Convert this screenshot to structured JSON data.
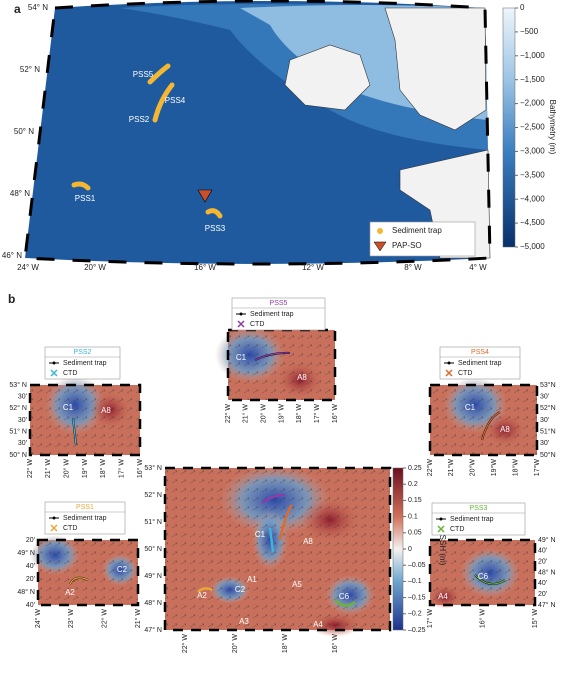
{
  "panel_a": {
    "label": "a",
    "colorbar_label": "Bathymetry (m)",
    "colorbar_ticks": [
      0,
      {
        "value": -500,
        "label": "−500"
      },
      {
        "value": -1000,
        "label": "−1,000"
      },
      {
        "value": -1500,
        "label": "−1,500"
      },
      {
        "value": -2000,
        "label": "−2,000"
      },
      {
        "value": -2500,
        "label": "−2,500"
      },
      {
        "value": -3000,
        "label": "−3,000"
      },
      {
        "value": -3500,
        "label": "−3,500"
      },
      {
        "value": -4000,
        "label": "−4,000"
      },
      {
        "value": -4500,
        "label": "−4,500"
      },
      {
        "value": -5000,
        "label": "−5,000"
      }
    ],
    "lat_labels": [
      "54° N",
      "52° N",
      "50° N",
      "48° N",
      "46° N"
    ],
    "lon_labels": [
      "24° W",
      "20° W",
      "16° W",
      "12° W",
      "8° W",
      "4° W"
    ],
    "stations": [
      "PSS5",
      "PSS4",
      "PSS2",
      "PSS1",
      "PSS3"
    ],
    "legend": [
      {
        "name": "Sediment trap",
        "color": "#f5b731"
      },
      {
        "name": "PAP-SO",
        "color": "#c8502a"
      }
    ]
  },
  "panel_b": {
    "label": "b",
    "insets": [
      {
        "title": "PSS2",
        "title_color": "#3cb6d6",
        "legend": [
          "Sediment trap",
          "CTD"
        ],
        "lat_labels": [
          "53° N",
          "30'",
          "52° N",
          "30'",
          "51° N",
          "30'",
          "50° N"
        ],
        "lon_labels": [
          "22° W",
          "21° W",
          "20° W",
          "19° W",
          "18° W",
          "17° W",
          "16° W"
        ],
        "eddies": [
          "C1",
          "A8"
        ]
      },
      {
        "title": "PSS5",
        "title_color": "#8b3fa6",
        "legend": [
          "Sediment trap",
          "CTD"
        ],
        "lat_labels": [],
        "lon_labels": [
          "22° W",
          "21° W",
          "20° W",
          "19° W",
          "18° W",
          "17° W",
          "16° W"
        ],
        "eddies": [
          "C1",
          "A8"
        ]
      },
      {
        "title": "PSS4",
        "title_color": "#e06a2c",
        "legend": [
          "Sediment trap",
          "CTD"
        ],
        "lat_labels": [
          "53°N",
          "30'",
          "52°N",
          "30'",
          "51°N",
          "30'",
          "50°N"
        ],
        "lon_labels": [
          "22°W",
          "21°W",
          "20°W",
          "19°W",
          "18°W",
          "17°W"
        ],
        "eddies": [
          "C1",
          "A8"
        ]
      },
      {
        "title": "PSS1",
        "title_color": "#e8a838",
        "legend": [
          "Sediment trap",
          "CTD"
        ],
        "lat_labels": [
          "20'",
          "49° N",
          "40'",
          "20'",
          "48° N",
          "40'"
        ],
        "lon_labels": [
          "24° W",
          "23° W",
          "22° W",
          "21° W"
        ],
        "eddies": [
          "A2",
          "C2"
        ]
      },
      {
        "title": "PSS3",
        "title_color": "#6ab43c",
        "legend": [
          "Sediment trap",
          "CTD"
        ],
        "lat_labels": [
          "49° N",
          "40'",
          "20'",
          "48° N",
          "40'",
          "20'",
          "47° N"
        ],
        "lon_labels": [
          "17° W",
          "16° W",
          "15° W"
        ],
        "eddies": [
          "C6",
          "A4"
        ]
      }
    ],
    "main": {
      "lat_labels": [
        "53° N",
        "52° N",
        "51° N",
        "50° N",
        "49° N",
        "48° N",
        "47° N"
      ],
      "lon_labels": [
        "22° W",
        "20° W",
        "18° W",
        "16° W"
      ],
      "eddies": [
        "C1",
        "A8",
        "A1",
        "A2",
        "C2",
        "A5",
        "A3",
        "A4",
        "C6"
      ]
    },
    "ssh_colorbar": {
      "label": "SSH (m)",
      "ticks": [
        0.25,
        0.2,
        0.15,
        0.1,
        0.05,
        0,
        {
          "value": -0.05,
          "label": "–0.05"
        },
        {
          "value": -0.1,
          "label": "–0.1"
        },
        {
          "value": -0.15,
          "label": "–0.15"
        },
        {
          "value": -0.2,
          "label": "–0.2"
        },
        {
          "value": -0.25,
          "label": "–0.25"
        }
      ]
    }
  }
}
